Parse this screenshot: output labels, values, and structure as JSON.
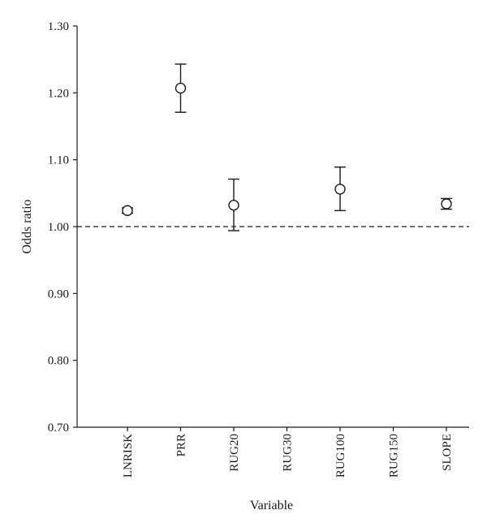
{
  "chart_data": {
    "type": "scatter",
    "title": "",
    "xlabel": "Variable",
    "ylabel": "Odds ratio",
    "categories": [
      "LNRISK",
      "PRR",
      "RUG20",
      "RUG30",
      "RUG100",
      "RUG150",
      "SLOPE"
    ],
    "ylim": [
      0.7,
      1.3
    ],
    "yticks": [
      "0.70",
      "0.80",
      "0.90",
      "1.00",
      "1.10",
      "1.20",
      "1.30"
    ],
    "reference_line": 1.0,
    "grid": false,
    "points": [
      {
        "category": "LNRISK",
        "value": 1.024,
        "lower": 1.02,
        "upper": 1.028
      },
      {
        "category": "PRR",
        "value": 1.207,
        "lower": 1.171,
        "upper": 1.243
      },
      {
        "category": "RUG20",
        "value": 1.032,
        "lower": 0.994,
        "upper": 1.071
      },
      {
        "category": "RUG100",
        "value": 1.056,
        "lower": 1.024,
        "upper": 1.089
      },
      {
        "category": "SLOPE",
        "value": 1.034,
        "lower": 1.026,
        "upper": 1.042
      }
    ]
  }
}
